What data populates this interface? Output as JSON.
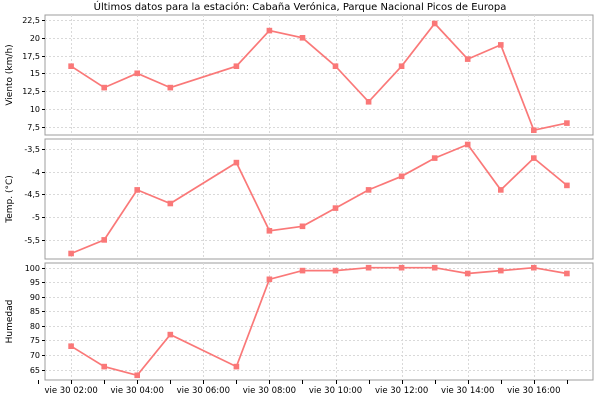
{
  "title": "Últimos datos para la estación: Cabaña Verónica, Parque Nacional Picos de Europa",
  "colors": {
    "series": "#fa7878",
    "frame": "#9c9c9c",
    "grid": "#d9d9d9",
    "text": "#000000",
    "background": "#ffffff"
  },
  "x_axis": {
    "major_tick_labels": [
      "vie 30 02:00",
      "vie 30 04:00",
      "vie 30 06:00",
      "vie 30 08:00",
      "vie 30 10:00",
      "vie 30 12:00",
      "vie 30 14:00",
      "vie 30 16:00"
    ],
    "major_hours": [
      2,
      4,
      6,
      8,
      10,
      12,
      14,
      16
    ],
    "minor_hours": [
      1,
      2,
      3,
      4,
      5,
      6,
      7,
      8,
      9,
      10,
      11,
      12,
      13,
      14,
      15,
      16,
      17
    ],
    "xlim_hours": [
      1.21,
      17.79
    ]
  },
  "chart_data": [
    {
      "type": "line",
      "name": "wind-chart",
      "ylabel": "Viento (km/h)",
      "xlabel": "",
      "x_times": [
        "02:00",
        "03:00",
        "04:00",
        "05:00",
        "07:00",
        "08:00",
        "09:00",
        "10:00",
        "11:00",
        "12:00",
        "13:00",
        "14:00",
        "15:00",
        "16:00",
        "17:00"
      ],
      "x_hours": [
        2,
        3,
        4,
        5,
        7,
        8,
        9,
        10,
        11,
        12,
        13,
        14,
        15,
        16,
        17
      ],
      "missing_hours": [
        6
      ],
      "values": [
        16,
        13,
        15,
        13,
        16,
        21,
        20,
        16,
        11,
        16,
        22,
        17,
        19,
        7,
        8
      ],
      "yticks": [
        7.5,
        10,
        12.5,
        15,
        17.5,
        20,
        22.5
      ],
      "ytick_labels": [
        "7,5",
        "10",
        "12,5",
        "15",
        "17,5",
        "20",
        "22,5"
      ],
      "ylim": [
        6.33,
        23.2
      ],
      "grid": true,
      "legend": "none",
      "marker": "square"
    },
    {
      "type": "line",
      "name": "temp-chart",
      "ylabel": "Temp. (°C)",
      "xlabel": "",
      "x_times": [
        "02:00",
        "03:00",
        "04:00",
        "05:00",
        "07:00",
        "08:00",
        "09:00",
        "10:00",
        "11:00",
        "12:00",
        "13:00",
        "14:00",
        "15:00",
        "16:00",
        "17:00"
      ],
      "x_hours": [
        2,
        3,
        4,
        5,
        7,
        8,
        9,
        10,
        11,
        12,
        13,
        14,
        15,
        16,
        17
      ],
      "missing_hours": [
        6
      ],
      "values": [
        -5.8,
        -5.5,
        -4.4,
        -4.7,
        -3.8,
        -5.3,
        -5.2,
        -4.8,
        -4.4,
        -4.1,
        -3.7,
        -3.4,
        -4.4,
        -3.7,
        -4.3
      ],
      "yticks": [
        -5.5,
        -5,
        -4.5,
        -4,
        -3.5
      ],
      "ytick_labels": [
        "-5,5",
        "-5",
        "-4,5",
        "-4",
        "-3,5"
      ],
      "ylim": [
        -5.92,
        -3.28
      ],
      "grid": true,
      "legend": "none",
      "marker": "square"
    },
    {
      "type": "line",
      "name": "humidity-chart",
      "ylabel": "Humedad",
      "xlabel": "",
      "x_times": [
        "02:00",
        "03:00",
        "04:00",
        "05:00",
        "07:00",
        "08:00",
        "09:00",
        "10:00",
        "11:00",
        "12:00",
        "13:00",
        "14:00",
        "15:00",
        "16:00",
        "17:00"
      ],
      "x_hours": [
        2,
        3,
        4,
        5,
        7,
        8,
        9,
        10,
        11,
        12,
        13,
        14,
        15,
        16,
        17
      ],
      "missing_hours": [
        6
      ],
      "values": [
        73,
        66,
        63,
        77,
        66,
        96,
        99,
        99,
        100,
        100,
        100,
        98,
        99,
        100,
        98
      ],
      "yticks": [
        65,
        70,
        75,
        80,
        85,
        90,
        95,
        100
      ],
      "ytick_labels": [
        "65",
        "70",
        "75",
        "80",
        "85",
        "90",
        "95",
        "100"
      ],
      "ylim": [
        61.4,
        101.6
      ],
      "grid": true,
      "legend": "none",
      "marker": "square"
    }
  ]
}
